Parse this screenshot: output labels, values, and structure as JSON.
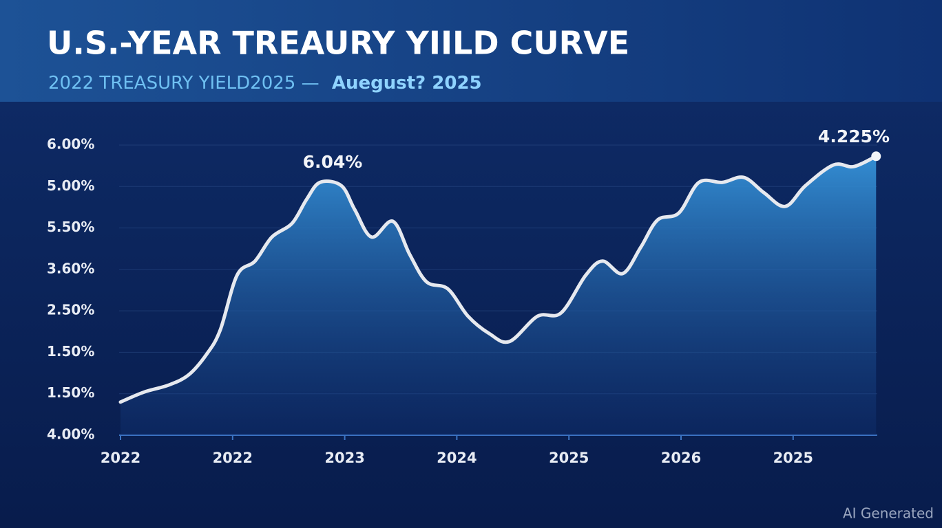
{
  "chart_data": {
    "type": "area",
    "title": "U.S.-YEAR TREAURY YIILD CURVE",
    "subtitle": "2022 TREASURY YIELD2025 —",
    "subtitle_highlight": "Auegust? 2025",
    "categories": [
      "2022",
      "2022",
      "2023",
      "2024",
      "2025",
      "2026",
      "2025"
    ],
    "ycategories": [
      "6.00%",
      "5.00%",
      "5.50%",
      "3.60%",
      "2.50%",
      "1.50%",
      "1.50%",
      "4.00%"
    ],
    "xlim": [
      0,
      6.75
    ],
    "ylim": [
      0,
      7
    ],
    "grid": true,
    "color": "#e6e9ef",
    "fill_color": "#2f86cf",
    "x": [
      0,
      0.21,
      0.43,
      0.61,
      0.77,
      0.89,
      1.04,
      1.2,
      1.35,
      1.53,
      1.66,
      1.78,
      1.97,
      2.09,
      2.24,
      2.43,
      2.58,
      2.73,
      2.92,
      3.1,
      3.29,
      3.47,
      3.72,
      3.93,
      4.15,
      4.3,
      4.48,
      4.64,
      4.79,
      4.98,
      5.16,
      5.37,
      5.56,
      5.74,
      5.93,
      6.11,
      6.36,
      6.54,
      6.74
    ],
    "values": [
      0.8,
      1.04,
      1.21,
      1.46,
      1.96,
      2.54,
      3.86,
      4.2,
      4.78,
      5.11,
      5.69,
      6.1,
      6.02,
      5.44,
      4.78,
      5.16,
      4.36,
      3.7,
      3.53,
      2.87,
      2.45,
      2.26,
      2.87,
      2.95,
      3.86,
      4.2,
      3.9,
      4.53,
      5.19,
      5.36,
      6.1,
      6.1,
      6.22,
      5.85,
      5.52,
      6.02,
      6.52,
      6.48,
      6.73
    ],
    "annotations": [
      "6.04%",
      "4.225%"
    ],
    "watermark": "AI Generated"
  }
}
